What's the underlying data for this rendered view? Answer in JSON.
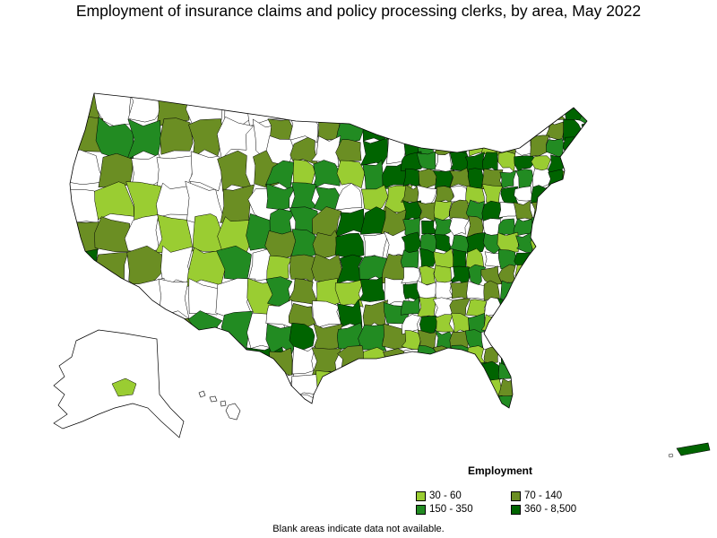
{
  "title": "Employment of insurance claims and policy processing clerks, by area, May 2022",
  "legend": {
    "title": "Employment",
    "items": [
      {
        "label": "30 - 60",
        "color": "#9acd32"
      },
      {
        "label": "70 - 140",
        "color": "#6b8e23"
      },
      {
        "label": "150 - 350",
        "color": "#228b22"
      },
      {
        "label": "360 - 8,500",
        "color": "#006400"
      }
    ]
  },
  "footnote": "Blank areas indicate data not available.",
  "map": {
    "no_data_color": "#ffffff",
    "border_color": "#000000"
  }
}
